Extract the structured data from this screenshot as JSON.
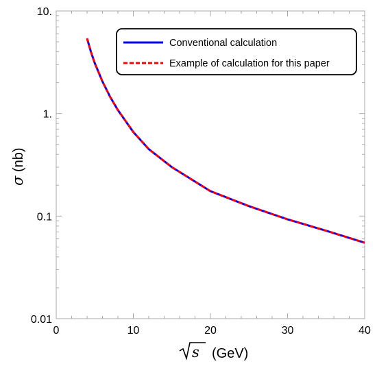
{
  "chart_data": {
    "type": "line",
    "title": "",
    "xlabel": {
      "symbol": "√s",
      "unit": "(GeV)"
    },
    "ylabel": {
      "symbol": "σ",
      "unit": "(nb)"
    },
    "xlim": [
      0,
      40
    ],
    "ylim": [
      0.01,
      10
    ],
    "yscale": "log",
    "grid": false,
    "legend_position": "top-right",
    "x_ticks": [
      0,
      10,
      20,
      30,
      40
    ],
    "x_tick_labels": [
      "0",
      "10",
      "20",
      "30",
      "40"
    ],
    "y_ticks": [
      0.01,
      0.1,
      1,
      10
    ],
    "y_tick_labels": [
      "0.01",
      "0.1",
      "1.",
      "10."
    ],
    "series": [
      {
        "name": "Conventional calculation",
        "color": "#0000ff",
        "style": "solid",
        "x": [
          4,
          4.5,
          5,
          6,
          7,
          8,
          10,
          12,
          15,
          20,
          25,
          30,
          35,
          40
        ],
        "y": [
          5.4,
          4.0,
          3.1,
          2.05,
          1.45,
          1.08,
          0.66,
          0.45,
          0.3,
          0.175,
          0.125,
          0.093,
          0.072,
          0.055
        ]
      },
      {
        "name": "Example of calculation for this paper",
        "color": "#ff0000",
        "style": "dashed",
        "x": [
          4,
          4.5,
          5,
          6,
          7,
          8,
          10,
          12,
          15,
          20,
          25,
          30,
          35,
          40
        ],
        "y": [
          5.4,
          4.0,
          3.1,
          2.05,
          1.45,
          1.08,
          0.66,
          0.45,
          0.3,
          0.175,
          0.125,
          0.093,
          0.072,
          0.055
        ]
      }
    ]
  }
}
